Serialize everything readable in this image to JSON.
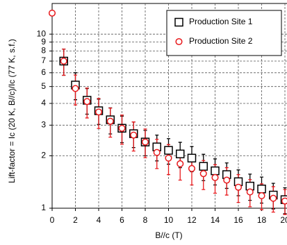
{
  "chart_data": {
    "type": "scatter",
    "x_label": "B//c (T)",
    "y_label": "Lift-factor = Ic (20 K, B//c)/Ic (77 K, s.f.)",
    "xlim": [
      0,
      20
    ],
    "xticks": [
      0,
      2,
      4,
      6,
      8,
      10,
      12,
      14,
      16,
      18,
      20
    ],
    "ylim": [
      1,
      15
    ],
    "yticks": [
      1,
      2,
      3,
      4,
      5,
      6,
      7,
      8,
      9,
      10
    ],
    "y_log": true,
    "grid": true,
    "legend": "upper right",
    "series": [
      {
        "name": "Production Site 1",
        "color": "#000000",
        "marker": "square",
        "x": [
          1,
          2,
          3,
          4,
          5,
          6,
          7,
          8,
          9,
          10,
          11,
          12,
          13,
          14,
          15,
          16,
          17,
          18,
          19,
          20
        ],
        "values": [
          7.0,
          5.1,
          4.17,
          3.63,
          3.22,
          2.88,
          2.68,
          2.4,
          2.25,
          2.15,
          2.05,
          1.94,
          1.74,
          1.64,
          1.56,
          1.42,
          1.34,
          1.29,
          1.19,
          1.12
        ],
        "errors": [
          1.2,
          0.9,
          0.7,
          0.6,
          0.55,
          0.5,
          0.45,
          0.4,
          0.38,
          0.36,
          0.34,
          0.32,
          0.3,
          0.28,
          0.26,
          0.24,
          0.23,
          0.22,
          0.2,
          0.19
        ]
      },
      {
        "name": "Production Site 2",
        "color": "#e8191c",
        "marker": "circle",
        "x": [
          0,
          1,
          2,
          3,
          4,
          5,
          6,
          7,
          8,
          9,
          10,
          11,
          12,
          13,
          14,
          15,
          16,
          17,
          18,
          19,
          20
        ],
        "values": [
          13.2,
          7.0,
          4.87,
          4.1,
          3.57,
          3.16,
          2.88,
          2.63,
          2.4,
          2.09,
          1.94,
          1.8,
          1.69,
          1.58,
          1.5,
          1.45,
          1.32,
          1.24,
          1.18,
          1.14,
          1.1
        ],
        "errors": [
          null,
          1.2,
          0.95,
          0.8,
          0.7,
          0.6,
          0.55,
          0.5,
          0.45,
          0.4,
          0.38,
          0.35,
          0.33,
          0.3,
          0.28,
          0.26,
          0.24,
          0.22,
          0.2,
          0.19,
          0.18
        ]
      }
    ]
  }
}
